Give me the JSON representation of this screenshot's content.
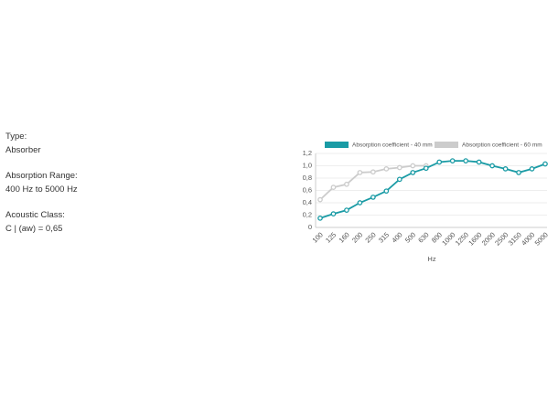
{
  "info": [
    {
      "label": "Type:",
      "value": "Absorber"
    },
    {
      "label": "Absorption Range:",
      "value": "400 Hz to 5000 Hz"
    },
    {
      "label": "Acoustic Class:",
      "value": "C | (aw) = 0,65"
    }
  ],
  "chart_data": {
    "type": "line",
    "x_label": "Hz",
    "categories": [
      "100",
      "125",
      "160",
      "200",
      "250",
      "315",
      "400",
      "500",
      "630",
      "800",
      "1000",
      "1250",
      "1600",
      "2000",
      "2500",
      "3150",
      "4000",
      "5000"
    ],
    "series": [
      {
        "name": "Absorption coefficient - 40 mm",
        "color": "#1a9ba5",
        "values": [
          0.15,
          0.22,
          0.28,
          0.4,
          0.49,
          0.59,
          0.78,
          0.89,
          0.96,
          1.06,
          1.08,
          1.08,
          1.06,
          1.0,
          0.95,
          0.89,
          0.95,
          1.03
        ]
      },
      {
        "name": "Absorption coefficient - 60 mm",
        "color": "#cccccc",
        "values": [
          0.45,
          0.65,
          0.7,
          0.89,
          0.9,
          0.95,
          0.97,
          1.0,
          1.0,
          null,
          null,
          null,
          null,
          null,
          null,
          null,
          null,
          null
        ]
      }
    ],
    "ylim": [
      0,
      1.2
    ],
    "yticks": [
      0,
      {
        "value": 0.2,
        "label": "0,2"
      },
      {
        "value": 0.4,
        "label": "0,4"
      },
      {
        "value": 0.6,
        "label": "0,6"
      },
      {
        "value": 0.8,
        "label": "0,8"
      },
      {
        "value": 1.0,
        "label": "1,0"
      },
      {
        "value": 1.2,
        "label": "1,2"
      }
    ],
    "grid": true,
    "legend": "top"
  }
}
